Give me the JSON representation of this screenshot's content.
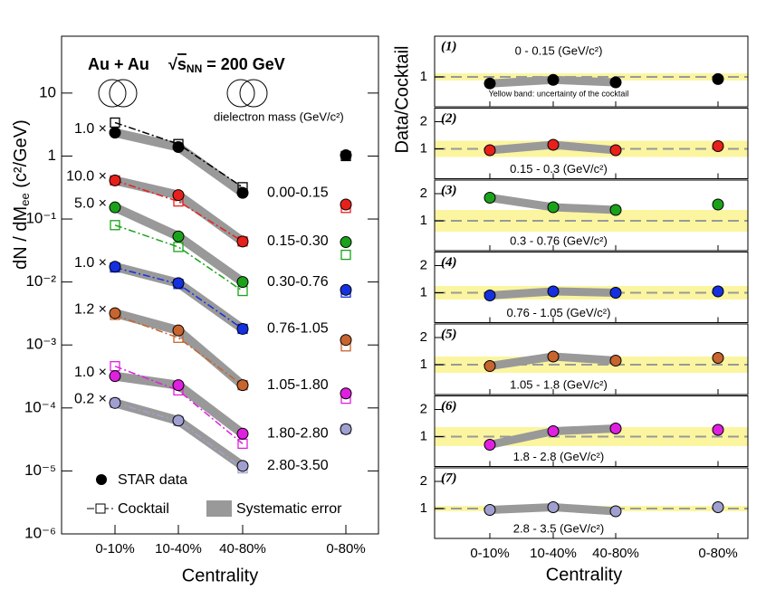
{
  "chart_data": [
    {
      "type": "line",
      "title": "Au + Au",
      "energy_parts": [
        "√",
        "s",
        "NN",
        " = 200 GeV"
      ],
      "ylabel_parts": [
        "dN / dM",
        "ee",
        " (c²/GeV)"
      ],
      "xlabel": "Centrality",
      "legend_title": "dielectron mass (GeV/c²)",
      "categories": [
        "0-10%",
        "10-40%",
        "40-80%",
        "0-80%"
      ],
      "log_y": true,
      "ylim": [
        1e-06,
        80
      ],
      "yticks": [
        {
          "value": 1e-06,
          "label": "10⁻⁶"
        },
        {
          "value": 1e-05,
          "label": "10⁻⁵"
        },
        {
          "value": 0.0001,
          "label": "10⁻⁴"
        },
        {
          "value": 0.001,
          "label": "10⁻³"
        },
        {
          "value": 0.01,
          "label": "10⁻²"
        },
        {
          "value": 0.1,
          "label": "10⁻¹"
        },
        1,
        10
      ],
      "legend": {
        "data": "STAR data",
        "cocktail": "Cocktail",
        "systematic": "Systematic error"
      },
      "series": [
        {
          "name": "0.00-0.15",
          "scale_label": "1.0 ×",
          "color": "#000000",
          "values": [
            2.35,
            1.39,
            0.26,
            1.03
          ],
          "cocktail": [
            3.4,
            1.55,
            0.32,
            1.0
          ]
        },
        {
          "name": "0.15-0.30",
          "scale_label": "10.0 ×",
          "color": "#e8201c",
          "values": [
            0.41,
            0.24,
            0.044,
            0.17
          ],
          "cocktail": [
            0.41,
            0.19,
            0.044,
            0.15
          ]
        },
        {
          "name": "0.30-0.76",
          "scale_label": "5.0 ×",
          "color": "#1aa31a",
          "values": [
            0.153,
            0.053,
            0.01,
            0.043
          ],
          "cocktail": [
            0.08,
            0.036,
            0.0072,
            0.027
          ]
        },
        {
          "name": "0.76-1.05",
          "scale_label": "1.0 ×",
          "color": "#1530e0",
          "values": [
            0.0175,
            0.0096,
            0.0018,
            0.0075
          ],
          "cocktail": [
            0.017,
            0.0093,
            0.0018,
            0.0068
          ]
        },
        {
          "name": "1.05-1.80",
          "scale_label": "1.2 ×",
          "color": "#c8642e",
          "values": [
            0.0032,
            0.0017,
            0.00023,
            0.0012
          ],
          "cocktail": [
            0.003,
            0.0013,
            0.00023,
            0.00095
          ]
        },
        {
          "name": "1.80-2.80",
          "scale_label": "1.0 ×",
          "color": "#e020e0",
          "values": [
            0.00032,
            0.00023,
            3.9e-05,
            0.00017
          ],
          "cocktail": [
            0.00046,
            0.00019,
            2.7e-05,
            0.00014
          ]
        },
        {
          "name": "2.80-3.50",
          "scale_label": "0.2 ×",
          "color": "#a0a0d0",
          "values": [
            0.00012,
            6.3e-05,
            1.2e-05,
            4.6e-05
          ],
          "cocktail": [
            0.00012,
            6.2e-05,
            1.1e-05,
            4.6e-05
          ]
        }
      ]
    },
    {
      "type": "ratio-panels",
      "ylabel": "Data/Cocktail",
      "xlabel": "Centrality",
      "categories": [
        "0-10%",
        "10-40%",
        "40-80%",
        "0-80%"
      ],
      "note": "Yellow band: uncertainty of the cocktail",
      "panels": [
        {
          "label": "(1)",
          "range": "0 - 0.15 (GeV/c²)",
          "color": "#000000",
          "values": [
            0.76,
            0.89,
            0.8,
            0.92
          ],
          "band": [
            0.87,
            1.13
          ],
          "ylim": [
            -0.1,
            2.5
          ],
          "yticks": [
            1
          ]
        },
        {
          "label": "(2)",
          "range": "0.15 - 0.3 (GeV/c²)",
          "color": "#e8201c",
          "values": [
            0.95,
            1.15,
            0.95,
            1.1
          ],
          "band": [
            0.7,
            1.3
          ],
          "ylim": [
            -0.1,
            2.5
          ],
          "yticks": [
            1,
            2
          ]
        },
        {
          "label": "(3)",
          "range": "0.3 - 0.76 (GeV/c²)",
          "color": "#1aa31a",
          "values": [
            1.85,
            1.5,
            1.4,
            1.6
          ],
          "band": [
            0.6,
            1.4
          ],
          "ylim": [
            -0.1,
            2.5
          ],
          "yticks": [
            1,
            2
          ]
        },
        {
          "label": "(4)",
          "range": "0.76 - 1.05 (GeV/c²)",
          "color": "#1530e0",
          "values": [
            0.9,
            1.05,
            1.0,
            1.05
          ],
          "band": [
            0.75,
            1.25
          ],
          "ylim": [
            -0.1,
            2.5
          ],
          "yticks": [
            1,
            2
          ]
        },
        {
          "label": "(5)",
          "range": "1.05 - 1.8 (GeV/c²)",
          "color": "#c8642e",
          "values": [
            0.95,
            1.3,
            1.15,
            1.25
          ],
          "band": [
            0.7,
            1.3
          ],
          "ylim": [
            -0.1,
            2.5
          ],
          "yticks": [
            1,
            2
          ]
        },
        {
          "label": "(6)",
          "range": "1.8 - 2.8 (GeV/c²)",
          "color": "#e020e0",
          "values": [
            0.7,
            1.2,
            1.3,
            1.25
          ],
          "band": [
            0.65,
            1.35
          ],
          "ylim": [
            -0.1,
            2.5
          ],
          "yticks": [
            1,
            2
          ]
        },
        {
          "label": "(7)",
          "range": "2.8 - 3.5 (GeV/c²)",
          "color": "#a0a0d0",
          "values": [
            0.95,
            1.05,
            0.9,
            1.05
          ],
          "band": [
            0.9,
            1.1
          ],
          "ylim": [
            -0.1,
            2.5
          ],
          "yticks": [
            1,
            2
          ]
        }
      ]
    }
  ]
}
